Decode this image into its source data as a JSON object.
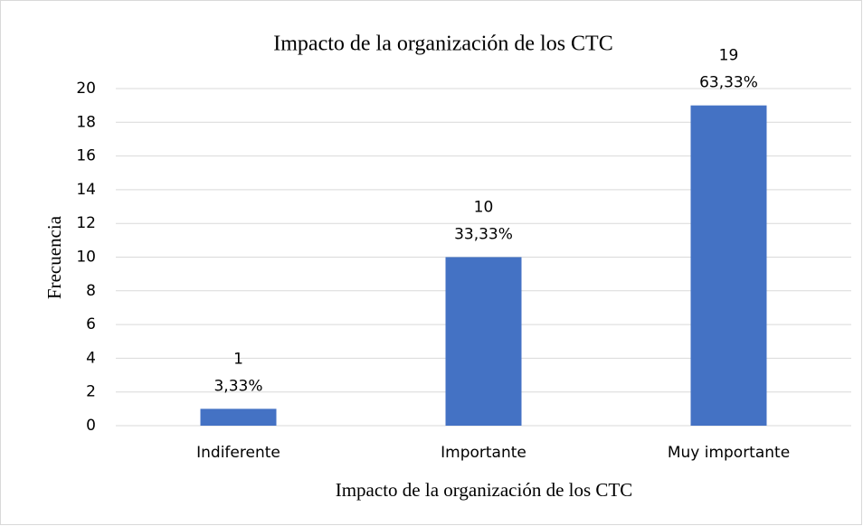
{
  "chart_data": {
    "type": "bar",
    "title": "Impacto de la organización de los CTC",
    "x_label": "Impacto de la organización de los CTC",
    "y_label": "Frecuencia",
    "categories": [
      "Indiferente",
      "Importante",
      "Muy importante"
    ],
    "values": [
      1,
      10,
      19
    ],
    "percentage_labels": [
      "3,33%",
      "33,33%",
      "63,33%"
    ],
    "color": "#4472c4",
    "ylim": [
      0,
      20
    ],
    "yticks": [
      0,
      2,
      4,
      6,
      8,
      10,
      12,
      14,
      16,
      18,
      20
    ],
    "grid": true
  }
}
